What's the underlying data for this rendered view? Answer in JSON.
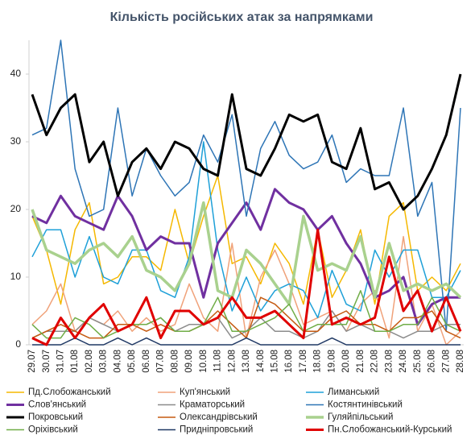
{
  "chart_data": {
    "type": "line",
    "title": "Кількість російських атак за напрямками",
    "x": [
      "29.07",
      "30.07",
      "31.07",
      "01.08",
      "02.08",
      "03.08",
      "04.08",
      "05.08",
      "06.08",
      "07.08",
      "08.08",
      "09.08",
      "10.08",
      "11.08",
      "12.08",
      "13.08",
      "14.08",
      "15.08",
      "16.08",
      "17.08",
      "18.08",
      "19.08",
      "20.08",
      "21.08",
      "22.08",
      "23.08",
      "24.08",
      "25.08",
      "26.08",
      "27.08",
      "28.08"
    ],
    "ylim": [
      0,
      45
    ],
    "yticks": [
      0,
      10,
      20,
      30,
      40
    ],
    "grid": false,
    "series": [
      {
        "name": "Пд.Слобожанський",
        "color": "#f5b800",
        "line_width": 1.5,
        "values": [
          19,
          14,
          6,
          17,
          21,
          9,
          10,
          13,
          13,
          11,
          20,
          12,
          19,
          25,
          12,
          13,
          9,
          15,
          12,
          6,
          17,
          7,
          11,
          17,
          6,
          19,
          21,
          8,
          10,
          8,
          12
        ]
      },
      {
        "name": "Куп'янський",
        "color": "#f0a27a",
        "line_width": 1.5,
        "values": [
          3,
          5,
          9,
          2,
          4,
          3,
          5,
          2,
          4,
          2,
          3,
          9,
          4,
          2,
          15,
          1,
          10,
          14,
          9,
          3,
          4,
          5,
          2,
          6,
          8,
          1,
          16,
          2,
          6,
          0,
          2
        ]
      },
      {
        "name": "Лиманський",
        "color": "#1ea0d8",
        "line_width": 1.5,
        "values": [
          13,
          17,
          17,
          10,
          16,
          10,
          9,
          14,
          14,
          8,
          7,
          13,
          30,
          14,
          5,
          10,
          5,
          8,
          9,
          8,
          4,
          11,
          6,
          5,
          14,
          10,
          14,
          14,
          7,
          7,
          11
        ]
      },
      {
        "name": "Слов'янський",
        "color": "#7030a0",
        "line_width": 3,
        "values": [
          19,
          18,
          22,
          19,
          18,
          17,
          22,
          19,
          14,
          16,
          15,
          15,
          7,
          15,
          18,
          21,
          17,
          23,
          21,
          20,
          17,
          19,
          15,
          12,
          7,
          8,
          10,
          3,
          6,
          7,
          7
        ]
      },
      {
        "name": "Краматорський",
        "color": "#8c8c8c",
        "line_width": 1.5,
        "values": [
          1,
          2,
          2,
          2,
          4,
          3,
          2,
          3,
          3,
          4,
          2,
          3,
          3,
          4,
          1,
          2,
          4,
          2,
          2,
          1,
          2,
          5,
          2,
          3,
          2,
          2,
          1,
          2,
          2,
          3,
          3
        ]
      },
      {
        "name": "Костянтинівський",
        "color": "#2e75b6",
        "line_width": 1.5,
        "values": [
          31,
          32,
          45,
          26,
          19,
          20,
          35,
          22,
          29,
          25,
          22,
          24,
          31,
          27,
          34,
          19,
          29,
          33,
          28,
          26,
          27,
          31,
          24,
          26,
          25,
          25,
          35,
          19,
          24,
          2,
          35
        ]
      },
      {
        "name": "Покровський",
        "color": "#000000",
        "line_width": 3,
        "values": [
          37,
          31,
          35,
          37,
          27,
          30,
          22,
          27,
          29,
          26,
          30,
          29,
          26,
          25,
          37,
          26,
          25,
          29,
          34,
          33,
          34,
          27,
          26,
          32,
          23,
          24,
          20,
          22,
          26,
          31,
          40
        ]
      },
      {
        "name": "Олександрівський",
        "color": "#c55a11",
        "line_width": 1.5,
        "values": [
          1,
          2,
          3,
          2,
          1,
          1,
          3,
          3,
          2,
          3,
          2,
          2,
          3,
          5,
          3,
          1,
          7,
          6,
          4,
          2,
          2,
          4,
          5,
          3,
          3,
          2,
          4,
          4,
          5,
          2,
          1
        ]
      },
      {
        "name": "Гуляйпільський",
        "color": "#a9d18e",
        "line_width": 3.5,
        "values": [
          20,
          14,
          13,
          12,
          14,
          15,
          13,
          16,
          11,
          10,
          8,
          12,
          21,
          8,
          7,
          14,
          12,
          9,
          6,
          19,
          11,
          12,
          11,
          16,
          7,
          15,
          8,
          9,
          8,
          9,
          7
        ]
      },
      {
        "name": "Оріхівський",
        "color": "#70ad47",
        "line_width": 1.5,
        "values": [
          3,
          1,
          1,
          4,
          3,
          1,
          2,
          3,
          3,
          4,
          2,
          2,
          3,
          7,
          2,
          2,
          3,
          4,
          6,
          2,
          3,
          3,
          3,
          8,
          2,
          2,
          3,
          3,
          7,
          3,
          2
        ]
      },
      {
        "name": "Придніпровський",
        "color": "#1f3864",
        "line_width": 1.5,
        "values": [
          0,
          0,
          0,
          1,
          0,
          0,
          1,
          0,
          1,
          0,
          0,
          0,
          0,
          0,
          0,
          1,
          0,
          0,
          0,
          0,
          0,
          1,
          0,
          0,
          0,
          0,
          0,
          0,
          0,
          0,
          0
        ]
      },
      {
        "name": "Пн.Слобожанський-Курський",
        "color": "#e00000",
        "line_width": 3,
        "values": [
          1,
          0,
          4,
          1,
          4,
          6,
          2,
          3,
          7,
          1,
          5,
          5,
          3,
          4,
          7,
          4,
          4,
          5,
          3,
          1,
          17,
          3,
          4,
          3,
          4,
          13,
          5,
          8,
          2,
          7,
          2
        ]
      }
    ]
  }
}
